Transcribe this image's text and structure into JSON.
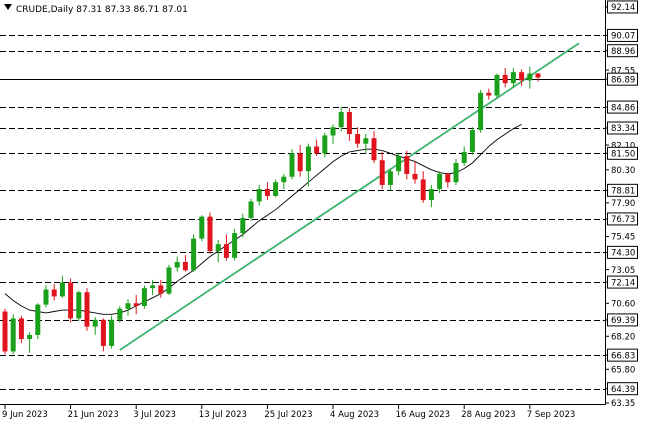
{
  "chart_data": {
    "type": "candlestick",
    "title": "CRUDE,Daily  87.31 87.33 86.71 87.01",
    "instrument": "CRUDE",
    "timeframe": "Daily",
    "ohlc_header": "87.31 87.33 86.71 87.01",
    "ylim": [
      63.35,
      92.5
    ],
    "y_ticks": [
      92.14,
      90.07,
      88.96,
      87.55,
      86.89,
      84.86,
      83.34,
      82.1,
      81.5,
      80.3,
      78.81,
      77.9,
      76.73,
      75.45,
      74.3,
      73.05,
      72.14,
      70.6,
      69.39,
      68.2,
      66.83,
      65.8,
      64.39,
      63.35
    ],
    "x_tick_labels": [
      {
        "label": "9 Jun 2023",
        "index": 0
      },
      {
        "label": "21 Jun 2023",
        "index": 8
      },
      {
        "label": "3 Jul 2023",
        "index": 16
      },
      {
        "label": "13 Jul 2023",
        "index": 24
      },
      {
        "label": "25 Jul 2023",
        "index": 32
      },
      {
        "label": "4 Aug 2023",
        "index": 40
      },
      {
        "label": "16 Aug 2023",
        "index": 48
      },
      {
        "label": "28 Aug 2023",
        "index": 56
      },
      {
        "label": "7 Sep 2023",
        "index": 64
      }
    ],
    "horizontal_levels": [
      90.07,
      88.96,
      86.89,
      84.86,
      83.34,
      81.5,
      78.81,
      76.73,
      74.3,
      72.14,
      69.39,
      66.83,
      64.39
    ],
    "highlighted_levels": [
      92.14,
      90.07,
      88.96,
      86.89,
      84.86,
      83.34,
      81.5,
      78.81,
      76.73,
      74.3,
      72.14,
      69.39,
      66.83,
      64.39
    ],
    "current_price": 86.89,
    "candles": [
      [
        70.0,
        70.2,
        66.9,
        67.1
      ],
      [
        67.1,
        69.8,
        66.9,
        69.5
      ],
      [
        69.5,
        69.7,
        67.7,
        68.0
      ],
      [
        68.0,
        68.5,
        67.0,
        68.3
      ],
      [
        68.3,
        70.6,
        68.0,
        70.5
      ],
      [
        70.5,
        71.9,
        70.3,
        71.6
      ],
      [
        71.6,
        72.0,
        70.8,
        71.1
      ],
      [
        71.1,
        72.6,
        71.0,
        72.1
      ],
      [
        72.1,
        72.4,
        69.2,
        69.5
      ],
      [
        69.5,
        71.5,
        69.3,
        71.4
      ],
      [
        71.4,
        71.7,
        68.6,
        68.9
      ],
      [
        68.9,
        69.6,
        68.3,
        69.4
      ],
      [
        69.4,
        69.5,
        67.1,
        67.5
      ],
      [
        67.5,
        69.7,
        67.3,
        69.4
      ],
      [
        69.4,
        70.4,
        69.2,
        70.2
      ],
      [
        70.2,
        70.9,
        69.7,
        70.6
      ],
      [
        70.6,
        71.2,
        69.8,
        70.4
      ],
      [
        70.4,
        71.9,
        70.2,
        71.7
      ],
      [
        71.7,
        72.3,
        71.2,
        71.9
      ],
      [
        71.9,
        72.3,
        71.0,
        71.3
      ],
      [
        71.3,
        73.4,
        71.2,
        73.2
      ],
      [
        73.2,
        74.0,
        72.9,
        73.6
      ],
      [
        73.6,
        74.1,
        72.9,
        73.0
      ],
      [
        73.0,
        75.6,
        72.9,
        75.3
      ],
      [
        75.3,
        77.0,
        75.1,
        76.9
      ],
      [
        76.9,
        77.2,
        74.2,
        74.4
      ],
      [
        74.4,
        75.2,
        73.6,
        74.9
      ],
      [
        74.9,
        75.6,
        73.7,
        73.9
      ],
      [
        73.9,
        76.0,
        73.7,
        75.7
      ],
      [
        75.7,
        77.1,
        75.4,
        76.8
      ],
      [
        76.8,
        78.2,
        76.6,
        78.0
      ],
      [
        78.0,
        79.2,
        77.7,
        78.9
      ],
      [
        78.9,
        79.4,
        78.1,
        78.4
      ],
      [
        78.4,
        79.6,
        78.3,
        79.4
      ],
      [
        79.4,
        80.0,
        78.9,
        79.8
      ],
      [
        79.8,
        81.8,
        79.6,
        81.5
      ],
      [
        81.5,
        82.1,
        79.8,
        80.2
      ],
      [
        80.2,
        82.2,
        79.1,
        82.0
      ],
      [
        82.0,
        82.5,
        81.3,
        81.5
      ],
      [
        81.5,
        83.0,
        81.2,
        82.8
      ],
      [
        82.8,
        83.6,
        82.2,
        83.4
      ],
      [
        83.4,
        84.9,
        83.1,
        84.5
      ],
      [
        84.5,
        84.8,
        82.4,
        82.9
      ],
      [
        82.9,
        83.4,
        81.9,
        82.2
      ],
      [
        82.2,
        82.9,
        81.5,
        82.6
      ],
      [
        82.6,
        83.1,
        80.8,
        81.0
      ],
      [
        81.0,
        81.6,
        78.9,
        79.2
      ],
      [
        79.2,
        80.4,
        78.8,
        80.2
      ],
      [
        80.2,
        81.5,
        79.9,
        81.3
      ],
      [
        81.3,
        81.7,
        79.6,
        80.0
      ],
      [
        80.0,
        80.9,
        79.3,
        79.6
      ],
      [
        79.6,
        80.2,
        77.9,
        78.1
      ],
      [
        78.1,
        79.2,
        77.6,
        78.9
      ],
      [
        78.9,
        80.2,
        78.6,
        80.0
      ],
      [
        80.0,
        80.1,
        79.0,
        79.4
      ],
      [
        79.4,
        81.1,
        79.2,
        80.8
      ],
      [
        80.8,
        82.0,
        80.6,
        81.6
      ],
      [
        81.6,
        83.4,
        81.4,
        83.2
      ],
      [
        83.2,
        86.1,
        83.0,
        85.9
      ],
      [
        85.9,
        86.2,
        85.4,
        85.7
      ],
      [
        85.7,
        87.3,
        85.5,
        87.2
      ],
      [
        87.2,
        87.7,
        86.3,
        86.6
      ],
      [
        86.6,
        87.7,
        86.3,
        87.4
      ],
      [
        87.4,
        87.6,
        86.4,
        86.8
      ],
      [
        86.8,
        87.8,
        86.2,
        87.3
      ],
      [
        87.3,
        87.33,
        86.71,
        87.01
      ]
    ],
    "moving_average": [
      71.3,
      70.8,
      70.4,
      70.1,
      70.0,
      69.9,
      70.0,
      70.1,
      70.1,
      70.1,
      70.0,
      69.9,
      69.8,
      69.8,
      69.9,
      70.1,
      70.4,
      70.7,
      71.0,
      71.3,
      71.7,
      72.2,
      72.6,
      73.0,
      73.5,
      74.0,
      74.4,
      74.8,
      75.2,
      75.6,
      76.1,
      76.6,
      77.0,
      77.4,
      77.9,
      78.4,
      78.9,
      79.4,
      79.9,
      80.4,
      80.9,
      81.3,
      81.6,
      81.7,
      81.8,
      81.8,
      81.7,
      81.5,
      81.3,
      81.1,
      80.9,
      80.6,
      80.3,
      80.1,
      80.0,
      80.1,
      80.4,
      80.8,
      81.4,
      82.0,
      82.5,
      82.9,
      83.3,
      83.6
    ],
    "trendline": {
      "start": {
        "index": 14,
        "price": 67.2
      },
      "end": {
        "index": 70,
        "price": 89.5
      }
    },
    "colors": {
      "background": "#ffffff",
      "bull_candle": "#1aa01a",
      "bear_candle": "#e0141e",
      "grid_dash": "#000000",
      "trendline": "#3cb371",
      "moving_average": "#000000",
      "label_box_border": "#000000"
    }
  }
}
